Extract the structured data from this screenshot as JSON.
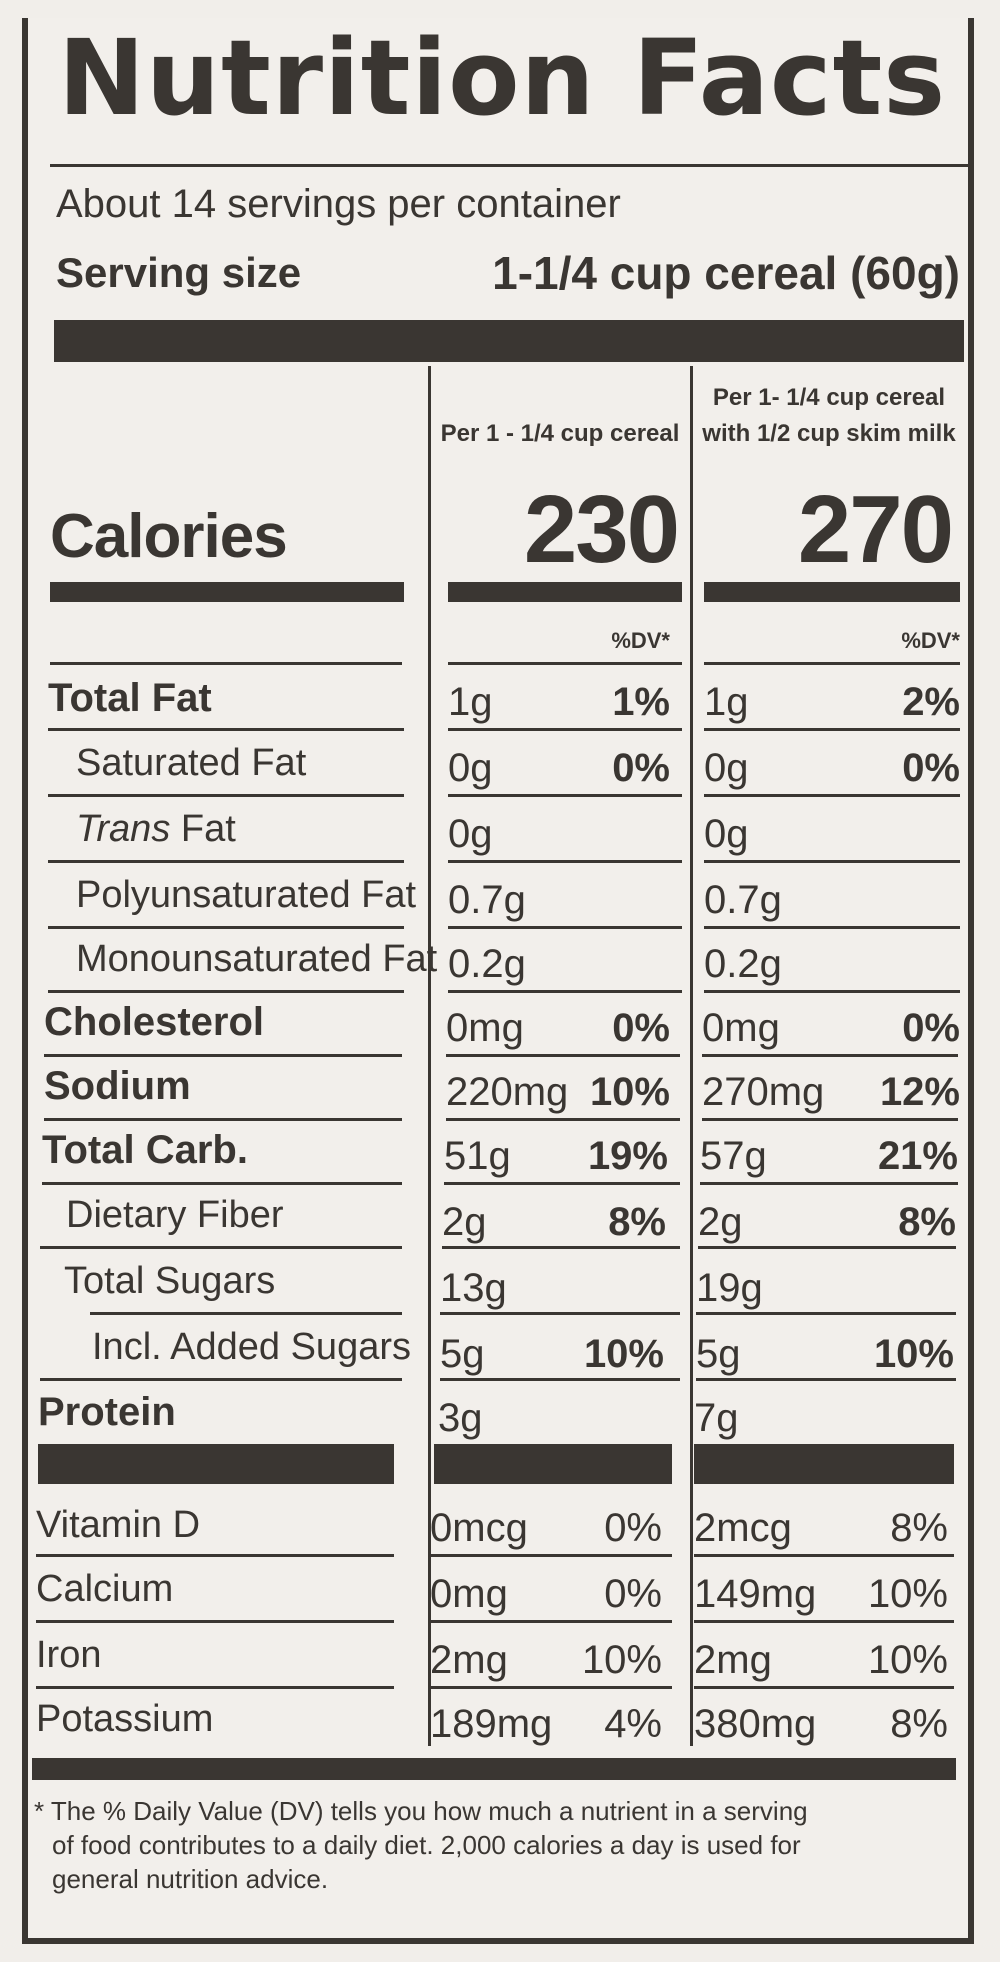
{
  "title": "Nutrition Facts",
  "servings": "About 14 servings per container",
  "serving_size_label": "Serving size",
  "serving_size_value": "1-1/4 cup cereal (60g)",
  "col1_header": "Per 1 - 1/4 cup cereal",
  "col2_header_line1": "Per 1- 1/4 cup cereal",
  "col2_header_line2": "with 1/2 cup skim milk",
  "calories_label": "Calories",
  "calories_1": "230",
  "calories_2": "270",
  "dv_label": "%DV*",
  "rows": [
    {
      "label": "Total Fat",
      "a": "1g",
      "ad": "1%",
      "b": "1g",
      "bd": "2%"
    },
    {
      "label": "Saturated Fat",
      "a": "0g",
      "ad": "0%",
      "b": "0g",
      "bd": "0%"
    },
    {
      "label_italic": "Trans",
      "label_rest": " Fat",
      "a": "0g",
      "ad": "",
      "b": "0g",
      "bd": ""
    },
    {
      "label": "Polyunsaturated Fat",
      "a": "0.7g",
      "ad": "",
      "b": "0.7g",
      "bd": ""
    },
    {
      "label": "Monounsaturated Fat",
      "a": "0.2g",
      "ad": "",
      "b": "0.2g",
      "bd": ""
    },
    {
      "label": "Cholesterol",
      "a": "0mg",
      "ad": "0%",
      "b": "0mg",
      "bd": "0%"
    },
    {
      "label": "Sodium",
      "a": "220mg",
      "ad": "10%",
      "b": "270mg",
      "bd": "12%"
    },
    {
      "label": "Total Carb.",
      "a": "51g",
      "ad": "19%",
      "b": "57g",
      "bd": "21%"
    },
    {
      "label": "Dietary Fiber",
      "a": "2g",
      "ad": "8%",
      "b": "2g",
      "bd": "8%"
    },
    {
      "label": "Total Sugars",
      "a": "13g",
      "ad": "",
      "b": "19g",
      "bd": ""
    },
    {
      "label": "Incl. Added Sugars",
      "a": "5g",
      "ad": "10%",
      "b": "5g",
      "bd": "10%"
    },
    {
      "label": "Protein",
      "a": "3g",
      "ad": "",
      "b": "7g",
      "bd": ""
    }
  ],
  "vitamins": [
    {
      "label": "Vitamin D",
      "a": "0mcg",
      "ad": "0%",
      "b": "2mcg",
      "bd": "8%"
    },
    {
      "label": "Calcium",
      "a": "0mg",
      "ad": "0%",
      "b": "149mg",
      "bd": "10%"
    },
    {
      "label": "Iron",
      "a": "2mg",
      "ad": "10%",
      "b": "2mg",
      "bd": "10%"
    },
    {
      "label": "Potassium",
      "a": "189mg",
      "ad": "4%",
      "b": "380mg",
      "bd": "8%"
    }
  ],
  "footnote_1": "* The % Daily Value (DV) tells you how much a nutrient in a serving",
  "footnote_2": "of food contributes to a daily diet. 2,000 calories a day is used for",
  "footnote_3": "general nutrition advice.",
  "colors": {
    "ink": "#3a3632",
    "background": "#f2efeb"
  }
}
